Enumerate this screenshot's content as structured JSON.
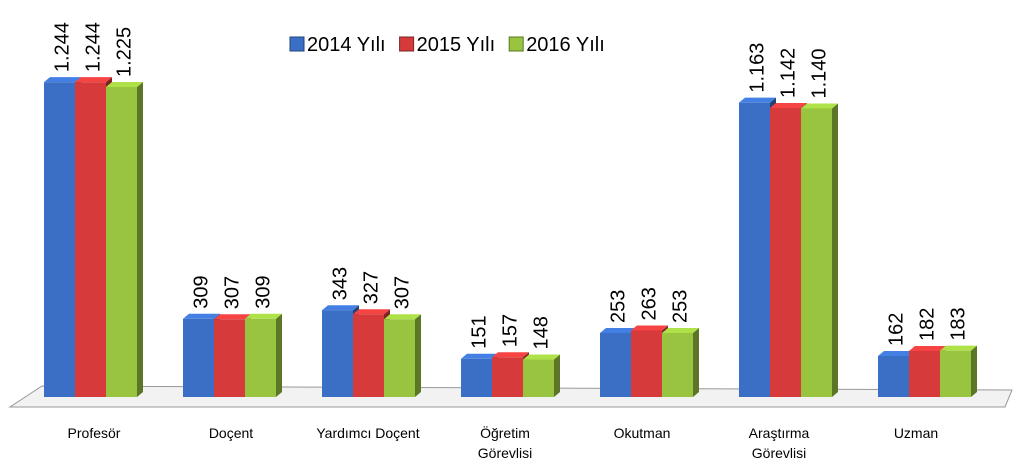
{
  "chart_data": {
    "type": "bar",
    "categories": [
      "Profesör",
      "Doçent",
      "Yardımcı Doçent",
      "Öğretim\nGörevlisi",
      "Okutman",
      "Araştırma\nGörevlisi",
      "Uzman"
    ],
    "series": [
      {
        "name": "2014 Yılı",
        "color": "#3b6fc6",
        "values": [
          1244,
          309,
          343,
          151,
          253,
          1163,
          162
        ],
        "value_labels": [
          "1.244",
          "309",
          "343",
          "151",
          "253",
          "1.163",
          "162"
        ]
      },
      {
        "name": "2015 Yılı",
        "color": "#d63a3a",
        "values": [
          1244,
          307,
          327,
          157,
          263,
          1142,
          182
        ],
        "value_labels": [
          "1.244",
          "307",
          "327",
          "157",
          "263",
          "1.142",
          "182"
        ]
      },
      {
        "name": "2016 Yılı",
        "color": "#98c43f",
        "values": [
          1225,
          309,
          307,
          148,
          253,
          1140,
          183
        ],
        "value_labels": [
          "1.225",
          "309",
          "307",
          "148",
          "253",
          "1.140",
          "183"
        ]
      }
    ],
    "ylim": [
      0,
      1300
    ],
    "legend": "top"
  }
}
